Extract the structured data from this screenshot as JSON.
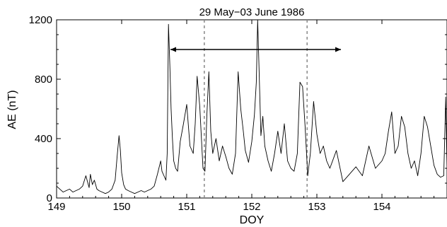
{
  "chart_data": {
    "type": "line",
    "title": "29 May−03 June 1986",
    "xlabel": "DOY",
    "ylabel": "AE (nT)",
    "xlim": [
      149,
      155
    ],
    "ylim": [
      0,
      1200
    ],
    "x_ticks": [
      149,
      150,
      151,
      152,
      153,
      154
    ],
    "x_tick_labels": [
      "149",
      "150",
      "151",
      "152",
      "153",
      "154"
    ],
    "y_ticks": [
      0,
      400,
      800,
      1200
    ],
    "y_tick_labels": [
      "0",
      "400",
      "800",
      "1200"
    ],
    "grid": false,
    "series": [
      {
        "color": "#000000",
        "x": [
          149.0,
          149.05,
          149.1,
          149.15,
          149.2,
          149.25,
          149.3,
          149.35,
          149.4,
          149.45,
          149.5,
          149.52,
          149.55,
          149.58,
          149.62,
          149.65,
          149.7,
          149.75,
          149.8,
          149.85,
          149.9,
          149.93,
          149.96,
          149.98,
          150.0,
          150.03,
          150.06,
          150.1,
          150.15,
          150.2,
          150.25,
          150.3,
          150.35,
          150.4,
          150.45,
          150.5,
          150.55,
          150.6,
          150.62,
          150.65,
          150.68,
          150.7,
          150.72,
          150.74,
          150.76,
          150.78,
          150.8,
          150.83,
          150.86,
          150.9,
          150.95,
          151.0,
          151.05,
          151.1,
          151.13,
          151.16,
          151.2,
          151.25,
          151.28,
          151.31,
          151.34,
          151.37,
          151.4,
          151.45,
          151.5,
          151.55,
          151.6,
          151.65,
          151.7,
          151.75,
          151.79,
          151.83,
          151.87,
          151.9,
          151.95,
          152.0,
          152.04,
          152.07,
          152.09,
          152.11,
          152.14,
          152.17,
          152.2,
          152.25,
          152.3,
          152.35,
          152.4,
          152.45,
          152.5,
          152.55,
          152.6,
          152.65,
          152.7,
          152.74,
          152.78,
          152.82,
          152.86,
          152.9,
          152.95,
          153.0,
          153.05,
          153.1,
          153.15,
          153.2,
          153.3,
          153.4,
          153.5,
          153.6,
          153.7,
          153.8,
          153.9,
          154.0,
          154.05,
          154.1,
          154.15,
          154.2,
          154.25,
          154.3,
          154.35,
          154.4,
          154.45,
          154.5,
          154.55,
          154.6,
          154.65,
          154.7,
          154.75,
          154.8,
          154.85,
          154.9,
          154.95,
          154.98,
          155.0
        ],
        "y": [
          80,
          60,
          40,
          50,
          60,
          40,
          50,
          60,
          80,
          150,
          70,
          160,
          90,
          120,
          60,
          50,
          40,
          30,
          40,
          60,
          120,
          280,
          420,
          320,
          170,
          90,
          60,
          50,
          40,
          30,
          40,
          50,
          40,
          50,
          60,
          80,
          160,
          250,
          180,
          150,
          120,
          300,
          1170,
          900,
          600,
          400,
          250,
          200,
          180,
          380,
          500,
          630,
          350,
          300,
          500,
          820,
          620,
          200,
          180,
          560,
          850,
          450,
          300,
          400,
          250,
          350,
          280,
          200,
          160,
          300,
          850,
          600,
          450,
          320,
          240,
          380,
          560,
          780,
          1200,
          900,
          420,
          550,
          350,
          250,
          180,
          300,
          450,
          300,
          500,
          250,
          200,
          180,
          300,
          780,
          750,
          480,
          150,
          300,
          650,
          430,
          300,
          350,
          250,
          200,
          320,
          110,
          160,
          210,
          150,
          350,
          200,
          250,
          300,
          450,
          580,
          300,
          350,
          550,
          480,
          300,
          200,
          250,
          150,
          300,
          550,
          480,
          350,
          220,
          160,
          140,
          150,
          680,
          200
        ]
      }
    ],
    "vertical_lines": [
      {
        "x": 151.27,
        "style": "dashed",
        "color": "#888888"
      },
      {
        "x": 152.85,
        "style": "dashed",
        "color": "#888888"
      }
    ],
    "annotations": [
      {
        "type": "arrow",
        "from": [
          150.75,
          1000
        ],
        "to": [
          153.37,
          1000
        ],
        "heads": "both"
      }
    ]
  }
}
